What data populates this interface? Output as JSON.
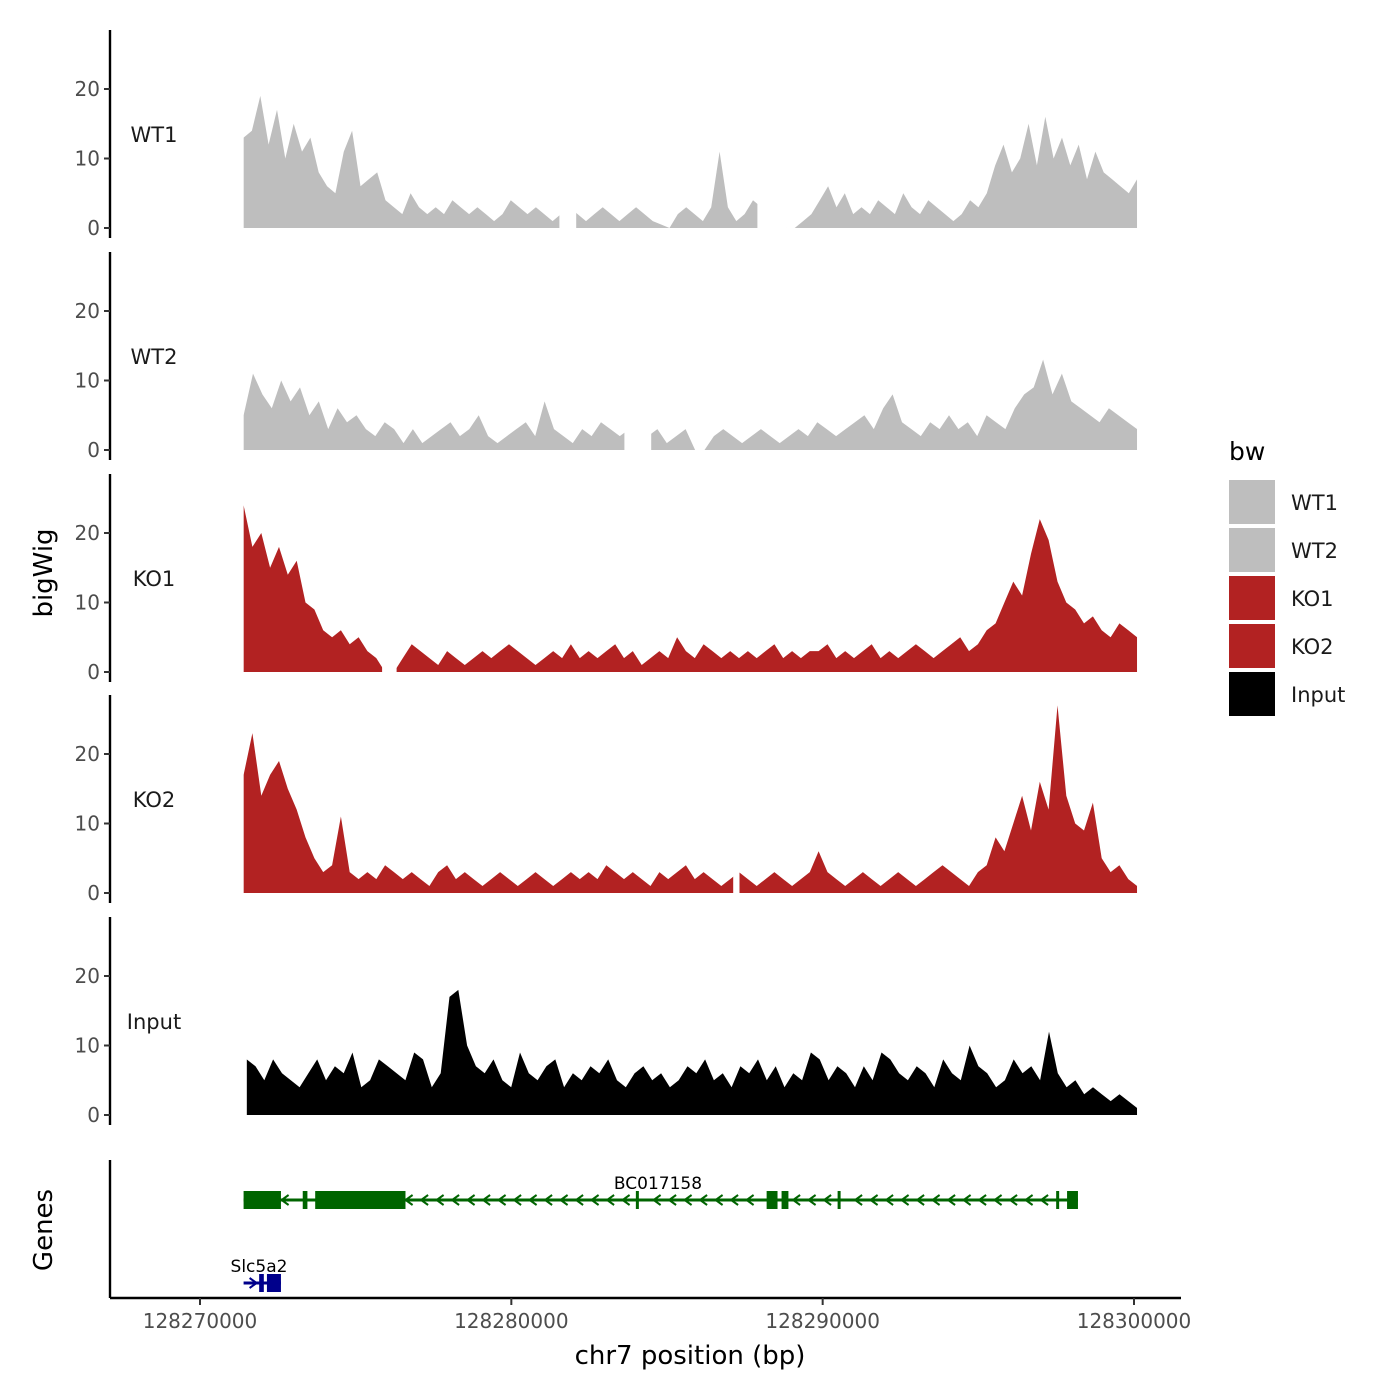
{
  "chart_data": {
    "type": "area",
    "title": "",
    "xlabel": "chr7 position (bp)",
    "ylabel": "bigWig",
    "genes_label": "Genes",
    "xlim": [
      128268000,
      128301500
    ],
    "ylim": [
      0,
      29
    ],
    "x_ticks": [
      128270000,
      128280000,
      128290000,
      128300000
    ],
    "x_tick_labels": [
      "128270000",
      "128280000",
      "128290000",
      "128300000"
    ],
    "y_ticks": [
      0,
      10,
      20
    ],
    "y_tick_labels": [
      "0",
      "10",
      "20"
    ],
    "legend": {
      "title": "bw",
      "position": "right",
      "items": [
        {
          "label": "WT1",
          "color": "#bebebe"
        },
        {
          "label": "WT2",
          "color": "#bebebe"
        },
        {
          "label": "KO1",
          "color": "#b22222"
        },
        {
          "label": "KO2",
          "color": "#b22222"
        },
        {
          "label": "Input",
          "color": "#000000"
        }
      ]
    },
    "series": [
      {
        "name": "WT1",
        "color": "#bebebe",
        "x_start": 128271400,
        "x_end": 128300100,
        "values": [
          13,
          14,
          19,
          12,
          17,
          10,
          15,
          11,
          13,
          8,
          6,
          5,
          11,
          14,
          6,
          7,
          8,
          4,
          3,
          2,
          5,
          3,
          2,
          3,
          2,
          4,
          3,
          2,
          3,
          2,
          1,
          2,
          4,
          3,
          2,
          3,
          2,
          1,
          2,
          3,
          2,
          1,
          2,
          3,
          2,
          1,
          2,
          3,
          2,
          1,
          0.5,
          0,
          2,
          3,
          2,
          1,
          3,
          11,
          3,
          1,
          2,
          4,
          3,
          2,
          1,
          0,
          0,
          1,
          2,
          4,
          6,
          3,
          5,
          2,
          3,
          2,
          4,
          3,
          2,
          5,
          3,
          2,
          4,
          3,
          2,
          1,
          2,
          4,
          3,
          5,
          9,
          12,
          8,
          10,
          15,
          9,
          16,
          10,
          13,
          9,
          12,
          7,
          11,
          8,
          7,
          6,
          5,
          7
        ],
        "gaps": [
          [
            0.3535,
            0.3722
          ],
          [
            0.575,
            0.6075
          ]
        ]
      },
      {
        "name": "WT2",
        "color": "#bebebe",
        "x_start": 128271400,
        "x_end": 128300100,
        "values": [
          5,
          11,
          8,
          6,
          10,
          7,
          9,
          5,
          7,
          3,
          6,
          4,
          5,
          3,
          2,
          4,
          3,
          1,
          3,
          1,
          2,
          3,
          4,
          2,
          3,
          5,
          2,
          1,
          2,
          3,
          4,
          2,
          7,
          3,
          2,
          1,
          3,
          2,
          4,
          3,
          2,
          3,
          1,
          2,
          3,
          1,
          2,
          3,
          0,
          0,
          2,
          3,
          2,
          1,
          2,
          3,
          2,
          1,
          2,
          3,
          2,
          4,
          3,
          2,
          3,
          4,
          5,
          3,
          6,
          8,
          4,
          3,
          2,
          4,
          3,
          5,
          3,
          4,
          2,
          5,
          4,
          3,
          6,
          8,
          9,
          13,
          8,
          11,
          7,
          6,
          5,
          4,
          6,
          5,
          4,
          3
        ],
        "gaps": [
          [
            0.4262,
            0.4562
          ]
        ]
      },
      {
        "name": "KO1",
        "color": "#b22222",
        "x_start": 128271400,
        "x_end": 128300100,
        "values": [
          24,
          18,
          20,
          15,
          18,
          14,
          16,
          10,
          9,
          6,
          5,
          6,
          4,
          5,
          3,
          2,
          0,
          0,
          2,
          4,
          3,
          2,
          1,
          3,
          2,
          1,
          2,
          3,
          2,
          3,
          4,
          3,
          2,
          1,
          2,
          3,
          2,
          4,
          2,
          3,
          2,
          3,
          4,
          2,
          3,
          1,
          2,
          3,
          2,
          5,
          3,
          2,
          4,
          3,
          2,
          3,
          2,
          3,
          2,
          3,
          4,
          2,
          3,
          2,
          3,
          3,
          4,
          2,
          3,
          2,
          3,
          4,
          2,
          3,
          2,
          3,
          4,
          3,
          2,
          3,
          4,
          5,
          3,
          4,
          6,
          7,
          10,
          13,
          11,
          17,
          22,
          19,
          13,
          10,
          9,
          7,
          8,
          6,
          5,
          7,
          6,
          5
        ],
        "gaps": [
          [
            0.155,
            0.1712
          ]
        ]
      },
      {
        "name": "KO2",
        "color": "#b22222",
        "x_start": 128271400,
        "x_end": 128300100,
        "values": [
          17,
          23,
          14,
          17,
          19,
          15,
          12,
          8,
          5,
          3,
          4,
          11,
          3,
          2,
          3,
          2,
          4,
          3,
          2,
          3,
          2,
          1,
          3,
          4,
          2,
          3,
          2,
          1,
          2,
          3,
          2,
          1,
          2,
          3,
          2,
          1,
          2,
          3,
          2,
          3,
          2,
          4,
          3,
          2,
          3,
          2,
          1,
          3,
          2,
          3,
          4,
          2,
          3,
          2,
          1,
          2,
          3,
          2,
          1,
          2,
          3,
          2,
          1,
          2,
          3,
          6,
          3,
          2,
          1,
          2,
          3,
          2,
          1,
          2,
          3,
          2,
          1,
          2,
          3,
          4,
          3,
          2,
          1,
          3,
          4,
          8,
          6,
          10,
          14,
          9,
          16,
          12,
          27,
          14,
          10,
          9,
          13,
          5,
          3,
          4,
          2,
          1
        ],
        "gaps": [
          [
            0.548,
            0.555
          ]
        ]
      },
      {
        "name": "Input",
        "color": "#000000",
        "x_start": 128271500,
        "x_end": 128300100,
        "values": [
          8,
          7,
          5,
          8,
          6,
          5,
          4,
          6,
          8,
          5,
          7,
          6,
          9,
          4,
          5,
          8,
          7,
          6,
          5,
          9,
          8,
          4,
          6,
          17,
          18,
          10,
          7,
          6,
          8,
          5,
          4,
          9,
          6,
          5,
          7,
          8,
          4,
          6,
          5,
          7,
          6,
          8,
          5,
          4,
          6,
          7,
          5,
          6,
          4,
          5,
          7,
          6,
          8,
          5,
          6,
          4,
          7,
          6,
          8,
          5,
          7,
          4,
          6,
          5,
          9,
          8,
          5,
          7,
          6,
          4,
          7,
          5,
          9,
          8,
          6,
          5,
          7,
          6,
          4,
          8,
          6,
          5,
          10,
          7,
          6,
          4,
          5,
          8,
          6,
          7,
          5,
          12,
          6,
          4,
          5,
          3,
          4,
          3,
          2,
          3,
          2,
          1
        ]
      }
    ],
    "genes": [
      {
        "name": "BC017158",
        "color": "#006400",
        "strand": "-",
        "row": 1,
        "start": 128271400,
        "end": 128298200,
        "exons": [
          [
            128271400,
            128272600
          ],
          [
            128273300,
            128273450
          ],
          [
            128273700,
            128276600
          ],
          [
            128284000,
            128284080
          ],
          [
            128288200,
            128288550
          ],
          [
            128288680,
            128288900
          ],
          [
            128290480,
            128290560
          ],
          [
            128297500,
            128297580
          ],
          [
            128297850,
            128298200
          ]
        ]
      },
      {
        "name": "Slc5a2",
        "color": "#00008b",
        "strand": "+",
        "row": 2,
        "start": 128271400,
        "end": 128272600,
        "exons": [
          [
            128271900,
            128272050
          ],
          [
            128272150,
            128272600
          ]
        ]
      }
    ]
  }
}
